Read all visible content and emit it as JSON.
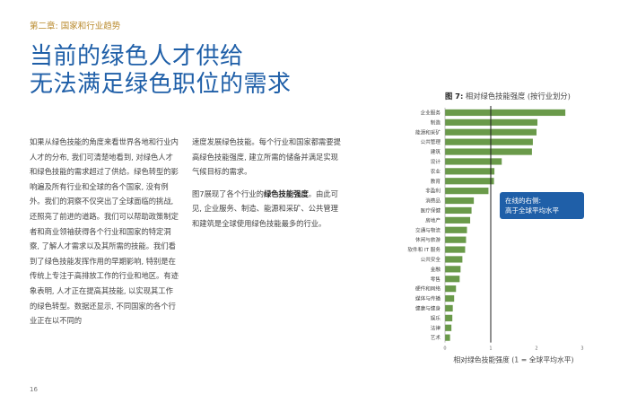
{
  "chapter": "第二章: 国家和行业趋势",
  "headline": {
    "line1": "当前的绿色人才供给",
    "line2": "无法满足绿色职位的需求"
  },
  "column1": {
    "text": "如果从绿色技能的角度来看世界各地和行业内人才的分布, 我们可清楚地看到, 对绿色人才和绿色技能的需求超过了供给。绿色转型的影响遍及所有行业和全球的各个国家, 没有例外。我们的洞察不仅突出了全球面临的挑战, 还照亮了前进的道路。我们可以帮助政策制定者和商业领袖获得各个行业和国家的特定洞察, 了解人才需求以及其所需的技能。我们看到了绿色技能发挥作用的早期影响, 特别是在传统上专注于高排放工作的行业和地区。有迹象表明, 人才正在提高其技能, 以实现其工作的绿色转型。数据还显示, 不同国家的各个行业正在以不同的"
  },
  "column2": {
    "p1": "速度发展绿色技能。每个行业和国家都需要提高绿色技能强度, 建立所需的储备并满足实现气候目标的需求。",
    "p2_pre": "图7展现了各个行业的",
    "p2_bold": "绿色技能强度",
    "p2_post": "。由此可见, 企业服务、制造、能源和采矿、公共管理和建筑是全球使用绿色技能最多的行业。"
  },
  "page_number": "16",
  "figure": {
    "label": "图 7:",
    "title": "相对绿色技能强度 (按行业划分)"
  },
  "callout": {
    "line1": "在线的右侧:",
    "line2": "高于全球平均水平"
  },
  "chart_data": {
    "type": "bar",
    "orientation": "horizontal",
    "title": "相对绿色技能强度 (按行业划分)",
    "xlabel": "相对绿色技能强度 (1 = 全球平均水平)",
    "xlim": [
      0,
      3
    ],
    "xticks": [
      0,
      1,
      2,
      3
    ],
    "reference_line": 1,
    "grid": false,
    "bar_color": "#6a9a4a",
    "categories": [
      "企业服务",
      "制造",
      "能源和采矿",
      "公共管理",
      "建筑",
      "设计",
      "农业",
      "教育",
      "非盈利",
      "消费品",
      "医疗保健",
      "房地产",
      "交通与物流",
      "休闲与旅游",
      "软件和 IT 服务",
      "公共安全",
      "金融",
      "零售",
      "硬件和网络",
      "媒体与传播",
      "健康与健身",
      "娱乐",
      "法律",
      "艺术"
    ],
    "values": [
      2.63,
      2.02,
      2.0,
      1.92,
      1.9,
      1.24,
      1.08,
      1.07,
      0.95,
      0.63,
      0.58,
      0.55,
      0.48,
      0.46,
      0.44,
      0.38,
      0.34,
      0.32,
      0.24,
      0.2,
      0.17,
      0.16,
      0.14,
      0.11
    ]
  }
}
